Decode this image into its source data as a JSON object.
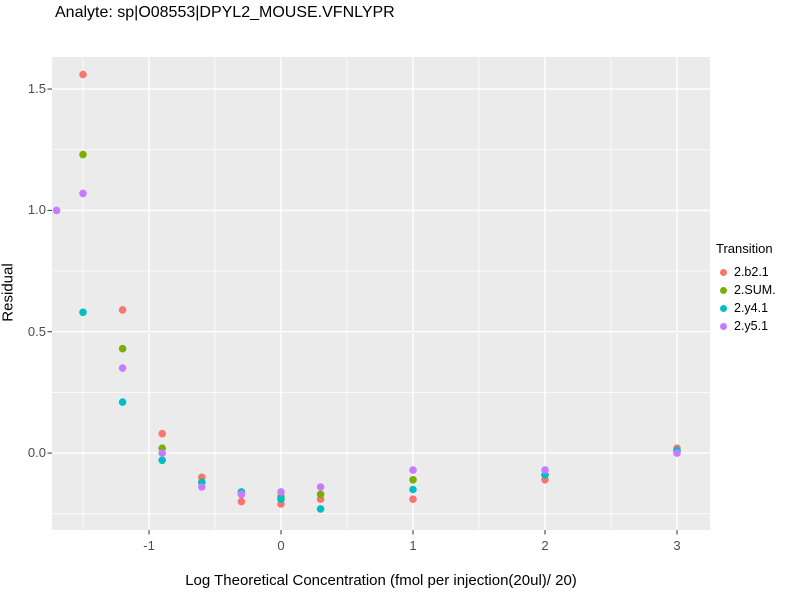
{
  "title": "Analyte: sp|O08553|DPYL2_MOUSE.VFNLYPR",
  "colors": {
    "panel_background": "#EBEBEB",
    "grid": "#FFFFFF",
    "tick_text": "#4D4D4D",
    "tick_mark": "#333333"
  },
  "chart_data": {
    "type": "scatter",
    "title": "Analyte: sp|O08553|DPYL2_MOUSE.VFNLYPR",
    "xlabel": "Log Theoretical Concentration (fmol per injection(20ul)/ 20)",
    "ylabel": "Residual",
    "legend_title": "Transition",
    "legend_position": "right",
    "grid": true,
    "xlim": [
      -1.735,
      3.25
    ],
    "ylim": [
      -0.317,
      1.632
    ],
    "x_ticks": [
      -1,
      0,
      1,
      2,
      3
    ],
    "x_tick_labels": [
      "-1",
      "0",
      "1",
      "2",
      "3"
    ],
    "y_ticks": [
      0.0,
      0.5,
      1.0,
      1.5
    ],
    "y_tick_labels": [
      "0.0",
      "0.5",
      "1.0",
      "1.5"
    ],
    "x_minor_ticks": [
      -1.5,
      -0.5,
      0.5,
      1.5,
      2.5
    ],
    "y_minor_ticks": [
      -0.25,
      0.25,
      0.75,
      1.25
    ],
    "series": [
      {
        "name": "2.b2.1",
        "color": "#F8766D",
        "points": [
          [
            -1.5,
            1.56
          ],
          [
            -1.2,
            0.59
          ],
          [
            -0.9,
            0.08
          ],
          [
            -0.6,
            -0.1
          ],
          [
            -0.3,
            -0.2
          ],
          [
            0.0,
            -0.21
          ],
          [
            0.3,
            -0.19
          ],
          [
            1.0,
            -0.19
          ],
          [
            2.0,
            -0.11
          ],
          [
            3.0,
            0.02
          ]
        ]
      },
      {
        "name": "2.SUM.",
        "color": "#7CAE00",
        "points": [
          [
            -1.5,
            1.23
          ],
          [
            -1.2,
            0.43
          ],
          [
            -0.9,
            0.02
          ],
          [
            -0.6,
            -0.12
          ],
          [
            -0.3,
            -0.17
          ],
          [
            0.0,
            -0.18
          ],
          [
            0.3,
            -0.17
          ],
          [
            1.0,
            -0.11
          ],
          [
            2.0,
            -0.09
          ],
          [
            3.0,
            0.01
          ]
        ]
      },
      {
        "name": "2.y4.1",
        "color": "#00BFC4",
        "points": [
          [
            -1.5,
            0.58
          ],
          [
            -1.2,
            0.21
          ],
          [
            -0.9,
            -0.03
          ],
          [
            -0.6,
            -0.12
          ],
          [
            -0.3,
            -0.16
          ],
          [
            0.0,
            -0.19
          ],
          [
            0.3,
            -0.23
          ],
          [
            1.0,
            -0.15
          ],
          [
            2.0,
            -0.09
          ],
          [
            3.0,
            0.01
          ]
        ]
      },
      {
        "name": "2.y5.1",
        "color": "#C77CFF",
        "points": [
          [
            -1.7,
            1.0
          ],
          [
            -1.5,
            1.07
          ],
          [
            -1.2,
            0.35
          ],
          [
            -0.9,
            0.0
          ],
          [
            -0.6,
            -0.14
          ],
          [
            -0.3,
            -0.17
          ],
          [
            0.0,
            -0.16
          ],
          [
            0.3,
            -0.14
          ],
          [
            1.0,
            -0.07
          ],
          [
            2.0,
            -0.07
          ],
          [
            3.0,
            0.0
          ]
        ]
      }
    ]
  }
}
